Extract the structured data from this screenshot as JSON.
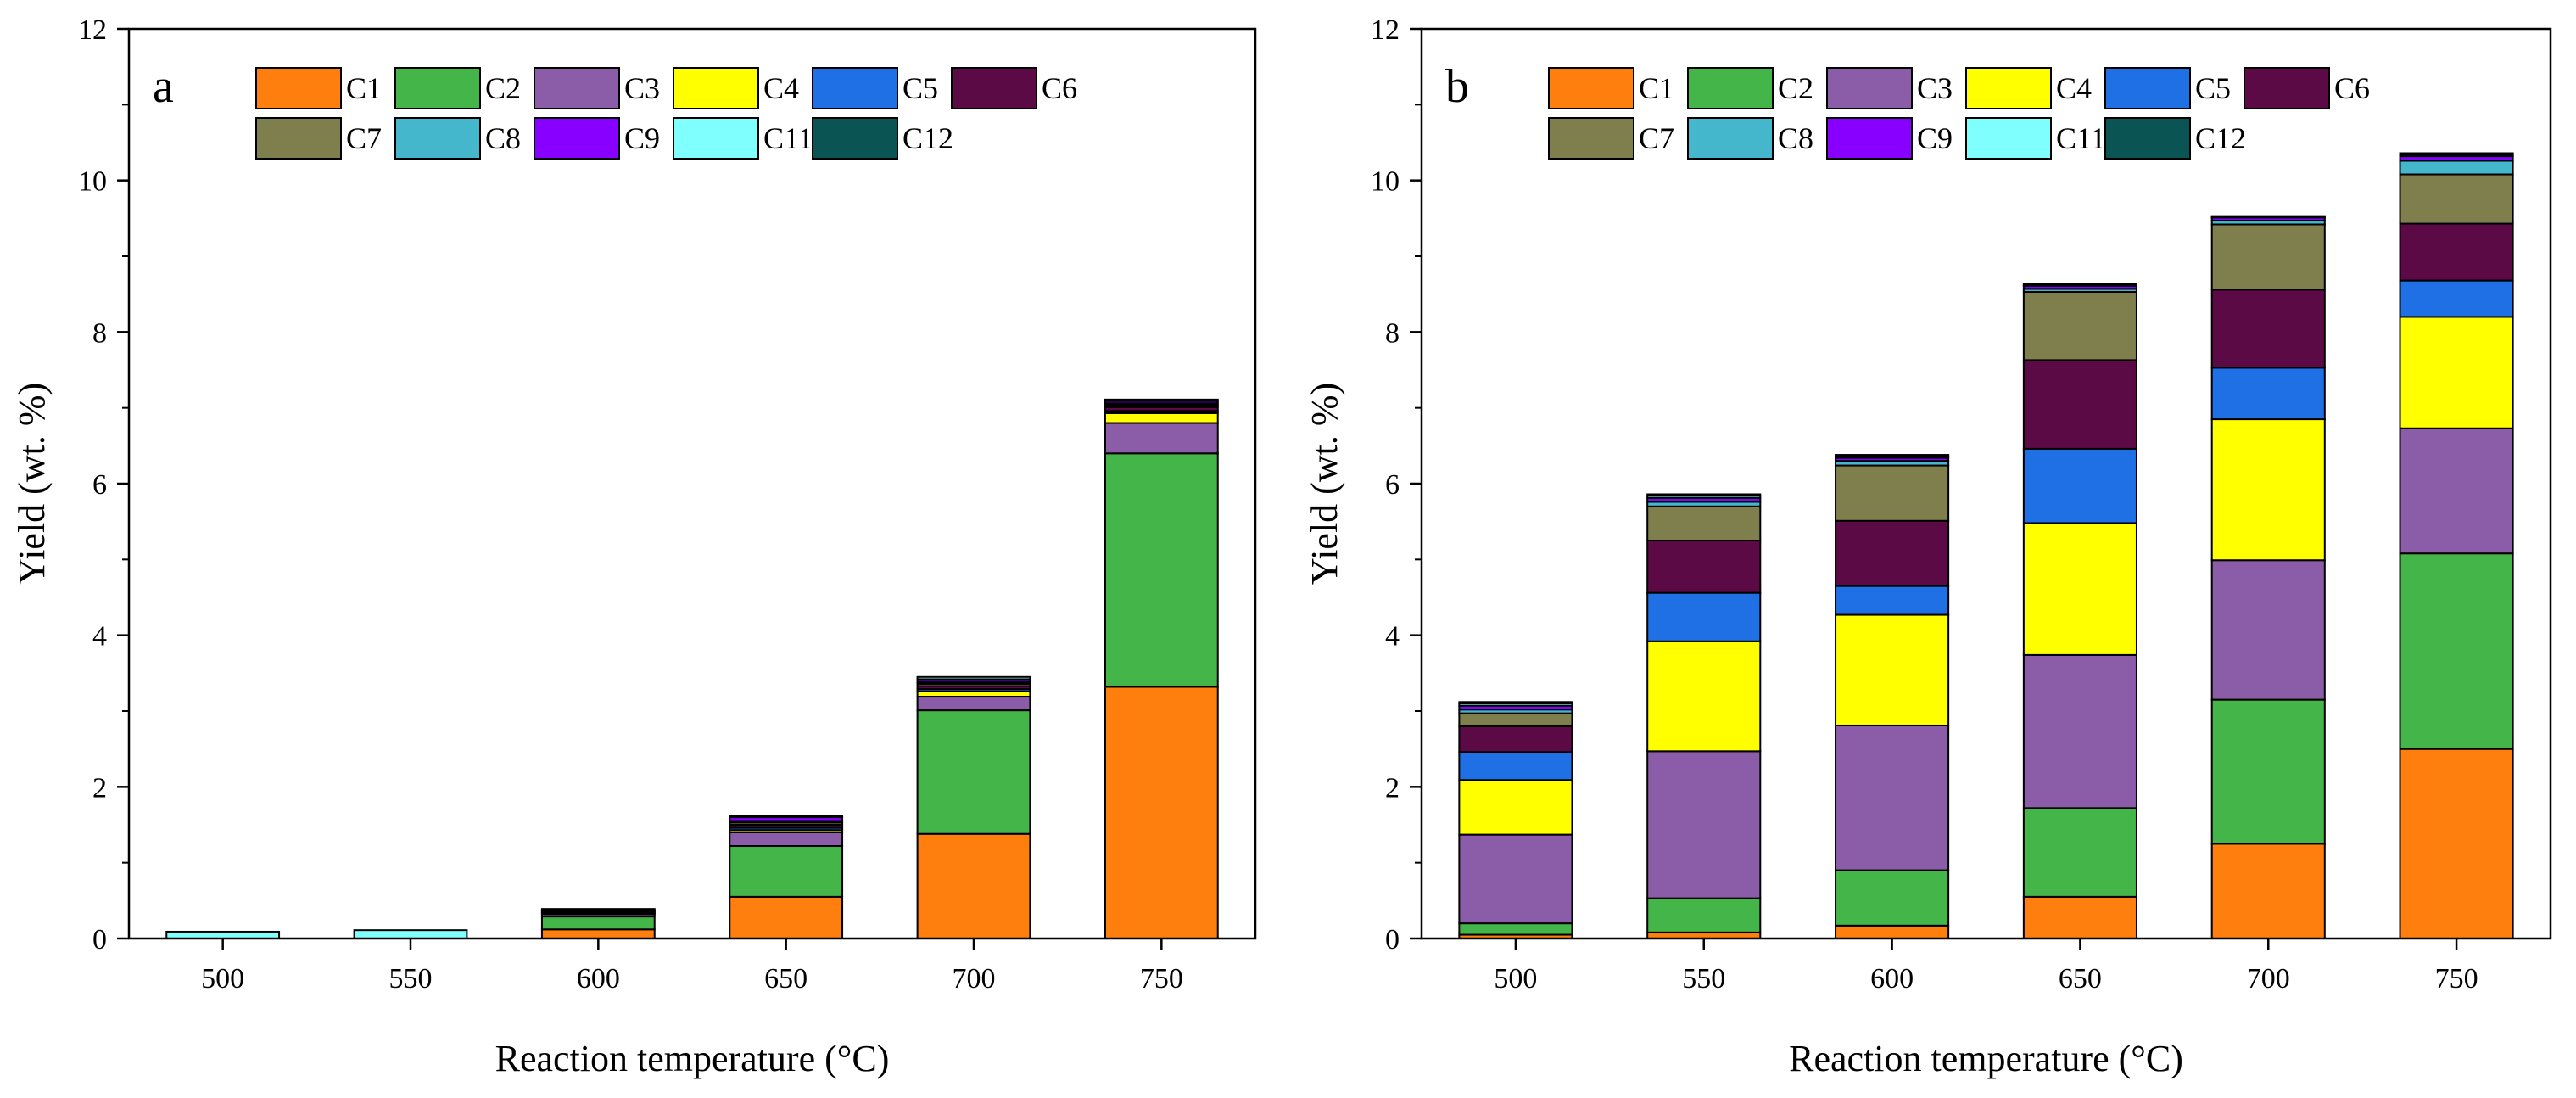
{
  "chart_data": [
    {
      "type": "bar",
      "stacked": true,
      "panel_label": "a",
      "categories": [
        "500",
        "550",
        "600",
        "650",
        "700",
        "750"
      ],
      "xlabel": "Reaction temperature (°C)",
      "ylabel": "Yield (wt. %)",
      "ylim": [
        0,
        12
      ],
      "yticks": [
        "0",
        "2",
        "4",
        "6",
        "8",
        "10",
        "12"
      ],
      "legend_position": "top",
      "series": [
        {
          "name": "C1",
          "color": "#ff7f0e",
          "values": [
            0,
            0,
            0.12,
            0.55,
            1.38,
            3.32
          ]
        },
        {
          "name": "C2",
          "color": "#44b649",
          "values": [
            0,
            0,
            0.17,
            0.67,
            1.63,
            3.08
          ]
        },
        {
          "name": "C3",
          "color": "#8b5ca8",
          "values": [
            0,
            0,
            0.03,
            0.18,
            0.18,
            0.4
          ]
        },
        {
          "name": "C4",
          "color": "#ffff00",
          "values": [
            0,
            0,
            0.01,
            0.03,
            0.07,
            0.13
          ]
        },
        {
          "name": "C5",
          "color": "#1f6fe5",
          "values": [
            0,
            0,
            0.01,
            0.03,
            0.03,
            0.03
          ]
        },
        {
          "name": "C6",
          "color": "#5c0a46",
          "values": [
            0,
            0,
            0.01,
            0.04,
            0.04,
            0.05
          ]
        },
        {
          "name": "C7",
          "color": "#7f7f4d",
          "values": [
            0,
            0,
            0.01,
            0.03,
            0.03,
            0.03
          ]
        },
        {
          "name": "C8",
          "color": "#45b7cd",
          "values": [
            0,
            0,
            0.01,
            0.02,
            0.02,
            0.02
          ]
        },
        {
          "name": "C9",
          "color": "#8800ff",
          "values": [
            0,
            0,
            0.01,
            0.05,
            0.04,
            0.03
          ]
        },
        {
          "name": "C11",
          "color": "#80ffff",
          "values": [
            0.09,
            0.11,
            0.01,
            0.02,
            0.03,
            0.02
          ]
        },
        {
          "name": "C12",
          "color": "#0a5553",
          "values": [
            0,
            0,
            0,
            0,
            0,
            0
          ]
        }
      ]
    },
    {
      "type": "bar",
      "stacked": true,
      "panel_label": "b",
      "categories": [
        "500",
        "550",
        "600",
        "650",
        "700",
        "750"
      ],
      "xlabel": "Reaction temperature (°C)",
      "ylabel": "Yield (wt. %)",
      "ylim": [
        0,
        12
      ],
      "yticks": [
        "0",
        "2",
        "4",
        "6",
        "8",
        "10",
        "12"
      ],
      "legend_position": "top",
      "series": [
        {
          "name": "C1",
          "color": "#ff7f0e",
          "values": [
            0.05,
            0.08,
            0.17,
            0.55,
            1.25,
            2.5
          ]
        },
        {
          "name": "C2",
          "color": "#44b649",
          "values": [
            0.15,
            0.45,
            0.73,
            1.17,
            1.9,
            2.58
          ]
        },
        {
          "name": "C3",
          "color": "#8b5ca8",
          "values": [
            1.17,
            1.94,
            1.91,
            2.02,
            1.84,
            1.65
          ]
        },
        {
          "name": "C4",
          "color": "#ffff00",
          "values": [
            0.72,
            1.45,
            1.46,
            1.74,
            1.86,
            1.47
          ]
        },
        {
          "name": "C5",
          "color": "#1f6fe5",
          "values": [
            0.37,
            0.64,
            0.38,
            0.98,
            0.68,
            0.48
          ]
        },
        {
          "name": "C6",
          "color": "#5c0a46",
          "values": [
            0.34,
            0.69,
            0.86,
            1.17,
            1.03,
            0.75
          ]
        },
        {
          "name": "C7",
          "color": "#7f7f4d",
          "values": [
            0.17,
            0.45,
            0.73,
            0.9,
            0.86,
            0.65
          ]
        },
        {
          "name": "C8",
          "color": "#45b7cd",
          "values": [
            0.05,
            0.06,
            0.06,
            0.04,
            0.05,
            0.18
          ]
        },
        {
          "name": "C9",
          "color": "#8800ff",
          "values": [
            0.05,
            0.05,
            0.04,
            0.04,
            0.04,
            0.06
          ]
        },
        {
          "name": "C11",
          "color": "#80ffff",
          "values": [
            0.03,
            0.03,
            0.02,
            0.01,
            0.01,
            0.02
          ]
        },
        {
          "name": "C12",
          "color": "#0a5553",
          "values": [
            0.02,
            0.02,
            0.02,
            0.02,
            0.01,
            0.02
          ]
        }
      ]
    }
  ]
}
